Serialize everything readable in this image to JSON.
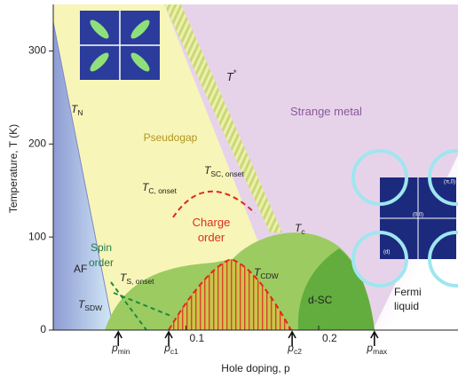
{
  "chart_data": {
    "type": "phase-diagram",
    "y_label": "Temperature, T (K)",
    "x_label": "Hole doping, p",
    "xlim": [
      0,
      0.305
    ],
    "ylim": [
      0,
      350
    ],
    "xticks": [
      0.1,
      0.2
    ],
    "yticks": [
      0,
      100,
      200,
      300
    ],
    "markers": [
      {
        "text": "p",
        "sub": "min",
        "x": 0.049
      },
      {
        "text": "p",
        "sub": "c1",
        "x": 0.087
      },
      {
        "text": "p",
        "sub": "c2",
        "x": 0.18
      },
      {
        "text": "p",
        "sub": "max",
        "x": 0.242
      }
    ],
    "annotations": [
      {
        "text": "T",
        "sup": "*"
      },
      {
        "text": "T",
        "sub": "N"
      },
      {
        "text": "Strange metal"
      },
      {
        "text": "Pseudogap"
      },
      {
        "text": "T",
        "sub": "SC, onset"
      },
      {
        "text": "T",
        "sub": "C, onset"
      },
      {
        "text": "Charge"
      },
      {
        "text": "order"
      },
      {
        "text": "T",
        "sub": "c"
      },
      {
        "text": "Spin"
      },
      {
        "text": "order"
      },
      {
        "text": "AF"
      },
      {
        "text": "T",
        "sub": "S, onset"
      },
      {
        "text": "T",
        "sub": "CDW"
      },
      {
        "text": "d-SC"
      },
      {
        "text": "Fermi"
      },
      {
        "text": "liquid"
      },
      {
        "text": "T",
        "sub": "SDW"
      }
    ],
    "inset_labels": [
      "(π,0)",
      "(0,0)",
      "(d)"
    ]
  }
}
